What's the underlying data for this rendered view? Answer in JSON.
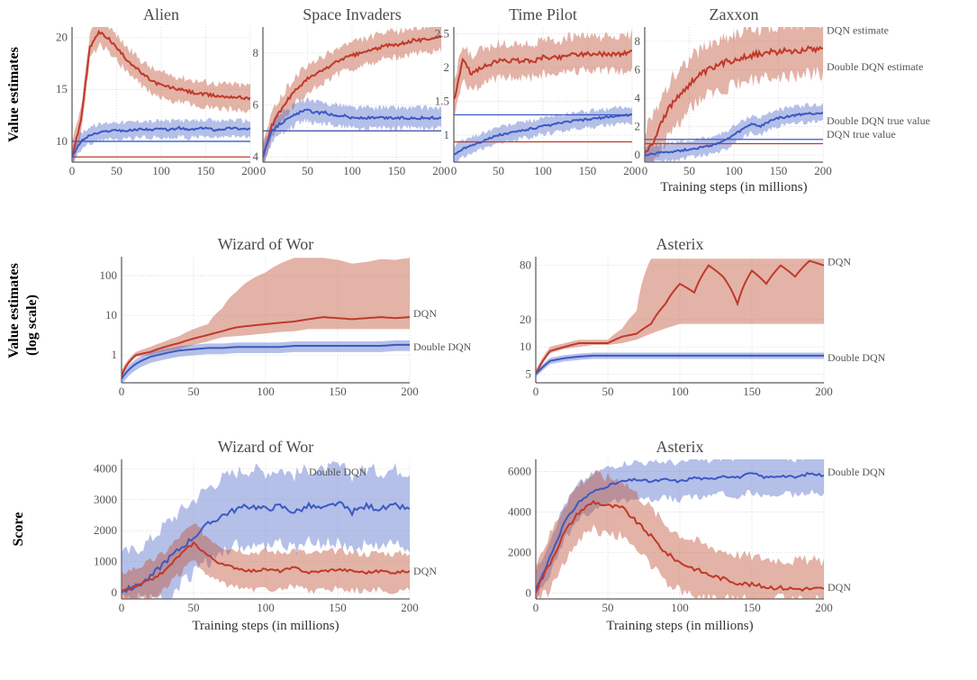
{
  "colors": {
    "dqn": "#c0392a",
    "dqn_fill": "rgba(192,87,60,0.45)",
    "ddqn": "#3b59c4",
    "ddqn_fill": "rgba(92,116,205,0.45)",
    "grid": "#d0d0d0",
    "axis": "#333333",
    "title": "#4a4a4a",
    "bg": "#ffffff"
  },
  "global": {
    "x_axis_label": "Training steps (in millions)",
    "x_ticks": [
      0,
      50,
      100,
      150,
      200
    ],
    "xlim": [
      0,
      200
    ]
  },
  "row1": {
    "ylabel": "Value estimates",
    "panels": [
      {
        "title": "Alien",
        "ylim": [
          8,
          21
        ],
        "yticks": [
          10,
          15,
          20
        ],
        "dqn_true": 8.5,
        "ddqn_true": 10,
        "dqn": [
          8.5,
          12,
          19,
          20.5,
          20,
          19,
          18,
          17.2,
          16.4,
          15.8,
          15.4,
          15.2,
          15,
          14.8,
          14.6,
          14.5,
          14.4,
          14.3,
          14.3,
          14.2,
          14.2
        ],
        "dqn_band": 1.2,
        "ddqn": [
          8.5,
          10,
          10.6,
          10.8,
          11,
          11.1,
          11,
          11.1,
          11.2,
          11.1,
          11.2,
          11.1,
          11.3,
          11.1,
          11.2,
          11.3,
          11.1,
          11.2,
          11.3,
          11.2,
          11.2
        ],
        "ddqn_band": 0.8
      },
      {
        "title": "Space Invaders",
        "ylim": [
          3.8,
          9
        ],
        "yticks": [
          4,
          6,
          8
        ],
        "dqn_true": 5,
        "ddqn_true": 5,
        "dqn": [
          4,
          5.2,
          5.8,
          6.3,
          6.7,
          7,
          7.2,
          7.4,
          7.6,
          7.8,
          7.9,
          8,
          8.1,
          8.2,
          8.3,
          8.3,
          8.4,
          8.5,
          8.5,
          8.6,
          8.6
        ],
        "dqn_band": 0.5,
        "ddqn": [
          4,
          5,
          5.3,
          5.5,
          5.7,
          5.8,
          5.7,
          5.7,
          5.6,
          5.6,
          5.5,
          5.5,
          5.5,
          5.5,
          5.5,
          5.5,
          5.5,
          5.5,
          5.5,
          5.5,
          5.5
        ],
        "ddqn_band": 0.4
      },
      {
        "title": "Time Pilot",
        "ylim": [
          0.6,
          2.6
        ],
        "yticks": [
          1.0,
          1.5,
          2.0,
          2.5
        ],
        "dqn_true": 0.9,
        "ddqn_true": 1.3,
        "dqn": [
          1.5,
          2.1,
          1.9,
          2.0,
          2.05,
          2.1,
          2.1,
          2.1,
          2.1,
          2.1,
          2.15,
          2.15,
          2.15,
          2.2,
          2.2,
          2.2,
          2.2,
          2.2,
          2.2,
          2.2,
          2.25
        ],
        "dqn_band": 0.25,
        "ddqn": [
          0.7,
          0.8,
          0.85,
          0.9,
          0.95,
          1.0,
          1.02,
          1.05,
          1.08,
          1.1,
          1.13,
          1.15,
          1.18,
          1.2,
          1.22,
          1.23,
          1.25,
          1.26,
          1.28,
          1.29,
          1.3
        ],
        "ddqn_band": 0.12
      },
      {
        "title": "Zaxxon",
        "ylim": [
          -0.5,
          9
        ],
        "yticks": [
          0,
          2,
          4,
          6,
          8
        ],
        "dqn_true": 0.8,
        "ddqn_true": 1.1,
        "dqn": [
          0,
          1,
          2.5,
          3.5,
          4.3,
          5,
          5.5,
          5.9,
          6.2,
          6.5,
          6.7,
          6.9,
          7,
          7.1,
          7.2,
          7.3,
          7.3,
          7.4,
          7.4,
          7.5,
          7.5
        ],
        "dqn_band": 1.8,
        "ddqn": [
          0,
          0.1,
          0.2,
          0.25,
          0.3,
          0.4,
          0.5,
          0.6,
          0.8,
          1.0,
          1.4,
          1.8,
          2.2,
          2.0,
          2.4,
          2.6,
          2.7,
          2.8,
          2.9,
          2.9,
          3.0
        ],
        "ddqn_band": 0.6,
        "legend": [
          {
            "text": "DQN estimate",
            "color": "dqn",
            "y": 0.95
          },
          {
            "text": "Double DQN estimate",
            "color": "ddqn",
            "y": 0.68
          },
          {
            "text": "Double DQN true value",
            "color": "ddqn",
            "y": 0.28
          },
          {
            "text": "DQN true value",
            "color": "dqn",
            "y": 0.18
          }
        ]
      }
    ]
  },
  "row2": {
    "ylabel": "Value estimates",
    "ylabel2": "(log scale)",
    "panels": [
      {
        "title": "Wizard of Wor",
        "ylim_log": [
          0.2,
          300
        ],
        "yticks": [
          1,
          10,
          100
        ],
        "dqn": [
          0.3,
          1.0,
          1.2,
          1.6,
          2.0,
          2.6,
          3.2,
          4.0,
          5.0,
          5.5,
          6,
          6.5,
          7,
          8,
          9,
          8.5,
          8,
          8.5,
          9,
          8.5,
          9
        ],
        "dqn_hi": [
          0.4,
          1.2,
          1.6,
          2.2,
          3.0,
          4.5,
          6,
          15,
          40,
          80,
          120,
          200,
          280,
          280,
          280,
          250,
          200,
          220,
          260,
          250,
          280
        ],
        "dqn_lo": [
          0.25,
          0.9,
          1.0,
          1.2,
          1.4,
          1.8,
          2.2,
          2.8,
          3.0,
          3.2,
          3.5,
          3.8,
          4.0,
          4.5,
          4.5,
          4.5,
          4.5,
          4.5,
          4.5,
          4.5,
          4.5
        ],
        "ddqn": [
          0.25,
          0.6,
          0.9,
          1.1,
          1.3,
          1.4,
          1.5,
          1.5,
          1.6,
          1.6,
          1.6,
          1.6,
          1.7,
          1.7,
          1.7,
          1.7,
          1.7,
          1.7,
          1.7,
          1.8,
          1.8
        ],
        "ddqn_band_log": 0.3,
        "legend": [
          {
            "text": "DQN",
            "color": "dqn"
          },
          {
            "text": "Double DQN",
            "color": "ddqn"
          }
        ]
      },
      {
        "title": "Asterix",
        "ylim_log": [
          4,
          100
        ],
        "yticks": [
          5,
          10,
          20,
          80
        ],
        "dqn": [
          5,
          9,
          10,
          11,
          11,
          11,
          13,
          14,
          18,
          30,
          50,
          40,
          80,
          60,
          30,
          70,
          50,
          80,
          60,
          90,
          80
        ],
        "dqn_hi": [
          5.5,
          10,
          11,
          12,
          12,
          12,
          16,
          25,
          95,
          95,
          95,
          95,
          95,
          95,
          95,
          95,
          95,
          95,
          95,
          95,
          95
        ],
        "dqn_lo": [
          4.8,
          8.5,
          9.5,
          10,
          10.5,
          10.5,
          11,
          12,
          14,
          16,
          18,
          18,
          18,
          18,
          18,
          18,
          18,
          18,
          18,
          18,
          18
        ],
        "ddqn": [
          5,
          7,
          7.5,
          7.8,
          8,
          8,
          8,
          8,
          8,
          8,
          8,
          8,
          8,
          8,
          8,
          8,
          8,
          8,
          8,
          8,
          8
        ],
        "ddqn_band_log": 0.08,
        "legend": [
          {
            "text": "DQN",
            "color": "dqn"
          },
          {
            "text": "Double DQN",
            "color": "ddqn"
          }
        ]
      }
    ]
  },
  "row3": {
    "ylabel": "Score",
    "panels": [
      {
        "title": "Wizard of Wor",
        "ylim": [
          -200,
          4300
        ],
        "yticks": [
          0,
          1000,
          2000,
          3000,
          4000
        ],
        "dqn": [
          50,
          200,
          400,
          700,
          1200,
          1600,
          1200,
          900,
          800,
          700,
          750,
          700,
          800,
          650,
          700,
          750,
          700,
          650,
          700,
          650,
          700
        ],
        "dqn_band": 600,
        "ddqn": [
          50,
          200,
          500,
          1000,
          1400,
          1800,
          2200,
          2500,
          2700,
          2800,
          2700,
          2800,
          2600,
          2800,
          2700,
          2900,
          2600,
          2800,
          2700,
          2800,
          2700
        ],
        "ddqn_band": 1200,
        "legend": [
          {
            "text": "Double DQN",
            "color": "ddqn",
            "pos": "top"
          },
          {
            "text": "DQN",
            "color": "dqn",
            "pos": "right"
          }
        ]
      },
      {
        "title": "Asterix",
        "ylim": [
          -300,
          6600
        ],
        "yticks": [
          0,
          2000,
          4000,
          6000
        ],
        "dqn": [
          100,
          1500,
          3000,
          4000,
          4500,
          4300,
          4200,
          3500,
          2800,
          2000,
          1500,
          1200,
          900,
          700,
          500,
          400,
          300,
          250,
          200,
          200,
          200
        ],
        "dqn_band": 1400,
        "ddqn": [
          100,
          1800,
          3500,
          4500,
          5000,
          5300,
          5500,
          5600,
          5500,
          5600,
          5500,
          5700,
          5600,
          5800,
          5700,
          5900,
          5700,
          5800,
          5700,
          5900,
          5800
        ],
        "ddqn_band": 900,
        "legend": [
          {
            "text": "Double DQN",
            "color": "ddqn",
            "pos": "right"
          },
          {
            "text": "DQN",
            "color": "dqn",
            "pos": "rightlow"
          }
        ]
      }
    ]
  }
}
